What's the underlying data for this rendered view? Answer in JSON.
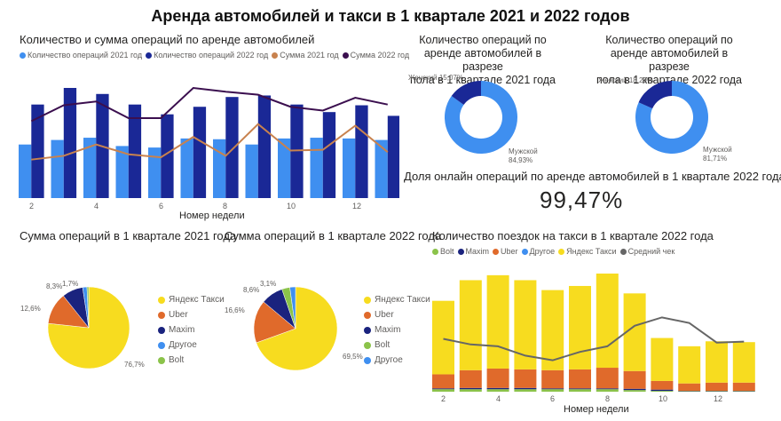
{
  "header": {
    "title": "Аренда автомобилей и такси в 1 квартале 2021 и 2022 годов"
  },
  "colors": {
    "light_blue": "#3f8ff0",
    "dark_blue": "#1a2896",
    "orange_line": "#c8824e",
    "purple_line": "#3b0f4f",
    "yandex": "#f7dc1f",
    "uber": "#e06a2b",
    "maxim": "#1a237e",
    "other": "#3f8ff0",
    "bolt": "#8bc34a",
    "avg_check": "#666666"
  },
  "combo": {
    "title": "Количество и сумма операций по аренде автомобилей",
    "legend": [
      {
        "label": "Количество операций 2021 год",
        "color": "#3f8ff0"
      },
      {
        "label": "Количество операций 2022 год",
        "color": "#1a2896"
      },
      {
        "label": "Сумма 2021 год",
        "color": "#c8824e"
      },
      {
        "label": "Сумма 2022 год",
        "color": "#3b0f4f"
      }
    ],
    "xlabel": "Номер недели",
    "ticks": [
      "2",
      "4",
      "6",
      "8",
      "10",
      "12"
    ]
  },
  "donut2021": {
    "title_lines": [
      "Количество операций по",
      "аренде автомобилей в разрезе",
      "пола в 1 квартале 2021 года"
    ],
    "female_label": "Женский 15,07%",
    "male_label": "Мужской",
    "male_value": "84,93%"
  },
  "donut2022": {
    "title_lines": [
      "Количество операций по",
      "аренде автомобилей в разрезе",
      "пола в 1 квартале 2022 года"
    ],
    "female_label": "Женский 18,29%",
    "male_label": "Мужской",
    "male_value": "81,71%"
  },
  "kpi": {
    "title": "Доля онлайн операций по аренде автомобилей в 1 квартале 2022 года",
    "value": "99,47%"
  },
  "pie2021": {
    "title": "Сумма операций в 1 квартале 2021 года",
    "legend": [
      {
        "label": "Яндекс Такси",
        "color": "#f7dc1f"
      },
      {
        "label": "Uber",
        "color": "#e06a2b"
      },
      {
        "label": "Maxim",
        "color": "#1a237e"
      },
      {
        "label": "Другое",
        "color": "#3f8ff0"
      },
      {
        "label": "Bolt",
        "color": "#8bc34a"
      }
    ],
    "labels": {
      "yandex": "76,7%",
      "uber": "12,6%",
      "maxim": "8,3%",
      "small": "1,7%"
    }
  },
  "pie2022": {
    "title": "Сумма операций в 1 квартале 2022 года",
    "legend": [
      {
        "label": "Яндекс Такси",
        "color": "#f7dc1f"
      },
      {
        "label": "Uber",
        "color": "#e06a2b"
      },
      {
        "label": "Maxim",
        "color": "#1a237e"
      },
      {
        "label": "Bolt",
        "color": "#8bc34a"
      },
      {
        "label": "Другое",
        "color": "#3f8ff0"
      }
    ],
    "labels": {
      "yandex": "69,5%",
      "uber": "16,6%",
      "maxim": "8,6%",
      "small": "3,1%"
    }
  },
  "taxi": {
    "title": "Количество поездок на такси в 1 квартале 2022 года",
    "legend": [
      {
        "label": "Bolt",
        "color": "#8bc34a"
      },
      {
        "label": "Maxim",
        "color": "#1a237e"
      },
      {
        "label": "Uber",
        "color": "#e06a2b"
      },
      {
        "label": "Другое",
        "color": "#3f8ff0"
      },
      {
        "label": "Яндекс Такси",
        "color": "#f7dc1f"
      },
      {
        "label": "Средний чек",
        "color": "#666666"
      }
    ],
    "xlabel": "Номер недели",
    "ticks": [
      "2",
      "4",
      "6",
      "8",
      "10",
      "12"
    ]
  },
  "chart_data": [
    {
      "type": "bar",
      "title": "Количество и сумма операций по аренде автомобилей",
      "xlabel": "Номер недели",
      "ylabel": "",
      "categories": [
        2,
        3,
        4,
        5,
        6,
        7,
        8,
        9,
        10,
        11,
        12,
        13
      ],
      "series": [
        {
          "name": "Количество операций 2021 год",
          "kind": "bar",
          "values": [
            71,
            77,
            80,
            69,
            67,
            79,
            78,
            71,
            79,
            80,
            79,
            77
          ]
        },
        {
          "name": "Количество операций 2022 год",
          "kind": "bar",
          "values": [
            124,
            146,
            138,
            124,
            111,
            121,
            134,
            136,
            124,
            114,
            123,
            109
          ]
        },
        {
          "name": "Сумма 2021 год",
          "kind": "line",
          "values": [
            51,
            56,
            71,
            58,
            54,
            81,
            56,
            98,
            63,
            64,
            96,
            61
          ]
        },
        {
          "name": "Сумма 2022 год",
          "kind": "line",
          "values": [
            102,
            123,
            128,
            106,
            106,
            146,
            141,
            137,
            121,
            116,
            133,
            124
          ]
        }
      ],
      "note": "values are relative (pixel-estimated); no y-axis shown"
    },
    {
      "type": "pie",
      "title": "Количество операций по аренде автомобилей в разрезе пола в 1 квартале 2021 года",
      "categories": [
        "Мужской",
        "Женский"
      ],
      "values": [
        84.93,
        15.07
      ],
      "donut": true
    },
    {
      "type": "pie",
      "title": "Количество операций по аренде автомобилей в разрезе пола в 1 квартале 2022 года",
      "categories": [
        "Мужской",
        "Женский"
      ],
      "values": [
        81.71,
        18.29
      ],
      "donut": true
    },
    {
      "type": "table",
      "title": "Доля онлайн операций по аренде автомобилей в 1 квартале 2022 года",
      "values": [
        99.47
      ],
      "unit": "%"
    },
    {
      "type": "pie",
      "title": "Сумма операций в 1 квартале 2021 года",
      "categories": [
        "Яндекс Такси",
        "Uber",
        "Maxim",
        "Другое",
        "Bolt"
      ],
      "values": [
        76.7,
        12.6,
        8.3,
        1.7,
        0.7
      ]
    },
    {
      "type": "pie",
      "title": "Сумма операций в 1 квартале 2022 года",
      "categories": [
        "Яндекс Такси",
        "Uber",
        "Maxim",
        "Bolt",
        "Другое"
      ],
      "values": [
        69.5,
        16.6,
        8.6,
        3.1,
        2.2
      ]
    },
    {
      "type": "bar",
      "stacked": true,
      "title": "Количество поездок на такси в 1 квартале 2022 года",
      "xlabel": "Номер недели",
      "categories": [
        2,
        3,
        4,
        5,
        6,
        7,
        8,
        9,
        10,
        11,
        12,
        13
      ],
      "series": [
        {
          "name": "Bolt",
          "values": [
            3,
            3,
            3,
            3,
            3,
            3,
            3,
            2,
            1,
            0.5,
            0.5,
            0.5
          ]
        },
        {
          "name": "Maxim",
          "values": [
            1,
            1.5,
            1.5,
            1.5,
            1,
            1,
            1,
            1.5,
            1.5,
            0.5,
            0.5,
            0.5
          ]
        },
        {
          "name": "Uber",
          "values": [
            17,
            21.5,
            23.5,
            22.5,
            22,
            23,
            25,
            21.5,
            10.5,
            9,
            10,
            10
          ]
        },
        {
          "name": "Другое",
          "values": [
            0,
            0,
            0,
            0,
            0,
            0,
            0,
            0,
            0,
            0,
            0,
            0
          ]
        },
        {
          "name": "Яндекс Такси",
          "values": [
            89,
            109,
            113,
            108,
            97,
            101,
            114,
            94,
            52,
            45,
            50,
            49
          ]
        },
        {
          "name": "Средний чек",
          "kind": "line",
          "values": [
            120,
            114,
            112,
            102,
            97,
            106,
            112,
            134,
            143,
            137,
            116,
            117
          ]
        }
      ],
      "note": "values are relative (pixel-estimated); no y-axis shown"
    }
  ]
}
